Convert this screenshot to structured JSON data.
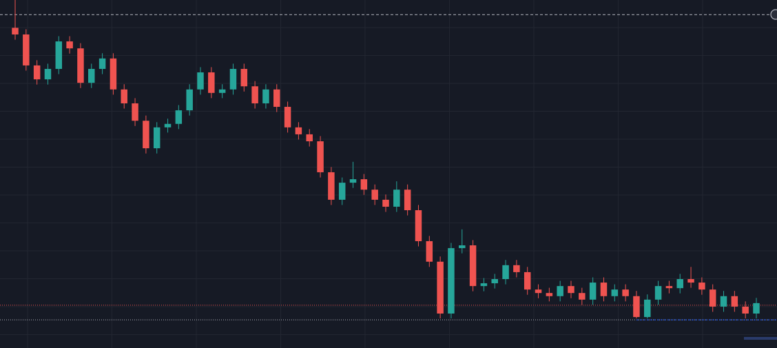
{
  "chart_data": {
    "type": "candlestick",
    "ylim": [
      0,
      100
    ],
    "up_color": "#26a69a",
    "down_color": "#ef5350",
    "grid": true,
    "open": [
      92,
      90.1,
      81.2,
      77.2,
      80.2,
      88.1,
      86.1,
      76.2,
      80.2,
      83.2,
      74.3,
      70.3,
      65.3,
      57.4,
      63.4,
      64.4,
      68.3,
      74.3,
      79.2,
      73.3,
      74.3,
      80.2,
      75.2,
      70.3,
      74.3,
      69.3,
      63.4,
      61.4,
      59.4,
      50.5,
      42.6,
      47.5,
      48.5,
      45.5,
      42.6,
      40.6,
      45.5,
      39.6,
      30.7,
      24.8,
      9.9,
      28.7,
      29.5,
      17.8,
      18.6,
      19.8,
      23.8,
      21.8,
      16.8,
      15.8,
      14.9,
      17.8,
      15.8,
      13.9,
      18.8,
      14.9,
      16.8,
      14.9,
      8.9,
      13.9,
      17.8,
      17.2,
      19.8,
      18.8,
      16.8,
      11.9,
      14.9,
      11.9,
      9.9
    ],
    "high": [
      100,
      91.6,
      82.7,
      81.7,
      89.6,
      89.6,
      87.6,
      81.7,
      84.7,
      84.7,
      75.8,
      71.8,
      66.8,
      64.9,
      65.9,
      69.8,
      75.8,
      80.7,
      80.7,
      75.8,
      81.7,
      81.7,
      76.7,
      75.8,
      75.8,
      70.8,
      64.9,
      62.9,
      60.9,
      52.0,
      49.0,
      53.5,
      50.0,
      47.0,
      44.1,
      47.9,
      47.0,
      41.1,
      32.2,
      26.3,
      30.2,
      34.1,
      31.0,
      20.1,
      21.3,
      25.3,
      25.3,
      23.3,
      18.3,
      17.3,
      19.3,
      19.3,
      17.3,
      20.3,
      20.3,
      18.3,
      18.3,
      16.4,
      15.4,
      19.3,
      19.3,
      21.3,
      23.3,
      20.3,
      18.3,
      16.4,
      16.4,
      13.4,
      14.4
    ],
    "low": [
      88.6,
      79.7,
      75.7,
      75.7,
      78.7,
      84.6,
      74.7,
      74.7,
      78.7,
      72.8,
      68.8,
      63.8,
      55.9,
      55.9,
      61.9,
      62.9,
      66.8,
      72.8,
      71.8,
      71.8,
      72.8,
      73.7,
      68.8,
      68.8,
      67.8,
      61.9,
      59.9,
      57.9,
      49.0,
      41.1,
      41.1,
      46.0,
      44.0,
      41.1,
      39.1,
      39.1,
      38.1,
      29.2,
      23.3,
      8.5,
      8.5,
      27.2,
      16.3,
      16.3,
      17.1,
      18.3,
      20.3,
      15.3,
      14.3,
      13.4,
      13.4,
      14.3,
      12.4,
      12.4,
      13.4,
      13.4,
      13.4,
      8.5,
      8.5,
      12.4,
      15.7,
      15.7,
      17.3,
      15.3,
      10.4,
      10.4,
      10.4,
      8.5,
      8.5
    ],
    "close": [
      90.1,
      81.2,
      77.2,
      80.2,
      88.1,
      86.1,
      76.2,
      80.2,
      83.2,
      74.3,
      70.3,
      65.3,
      57.4,
      63.4,
      64.4,
      68.3,
      74.3,
      79.2,
      73.3,
      74.3,
      80.2,
      75.2,
      70.3,
      74.3,
      69.3,
      63.4,
      61.4,
      59.4,
      50.5,
      42.6,
      47.5,
      48.5,
      45.5,
      42.6,
      40.6,
      45.5,
      39.6,
      30.7,
      24.8,
      9.9,
      28.7,
      29.5,
      17.8,
      18.6,
      19.8,
      23.8,
      21.8,
      16.8,
      15.8,
      14.9,
      17.8,
      15.8,
      13.9,
      18.8,
      14.9,
      16.8,
      14.9,
      8.9,
      13.9,
      17.8,
      17.2,
      19.8,
      18.8,
      16.8,
      11.9,
      14.9,
      11.9,
      9.9,
      12.9
    ],
    "price_lines": [
      {
        "value": 95.8,
        "color": "#b2b5be",
        "dash": "4 3"
      },
      {
        "value": 12.3,
        "color": "#ef5350",
        "dash": "1 2"
      },
      {
        "value": 8.1,
        "color": "#b2b5be",
        "dash": "1 2"
      },
      {
        "value": 8.1,
        "color": "#2962ff",
        "dash": "3 2",
        "start": 57
      }
    ]
  }
}
